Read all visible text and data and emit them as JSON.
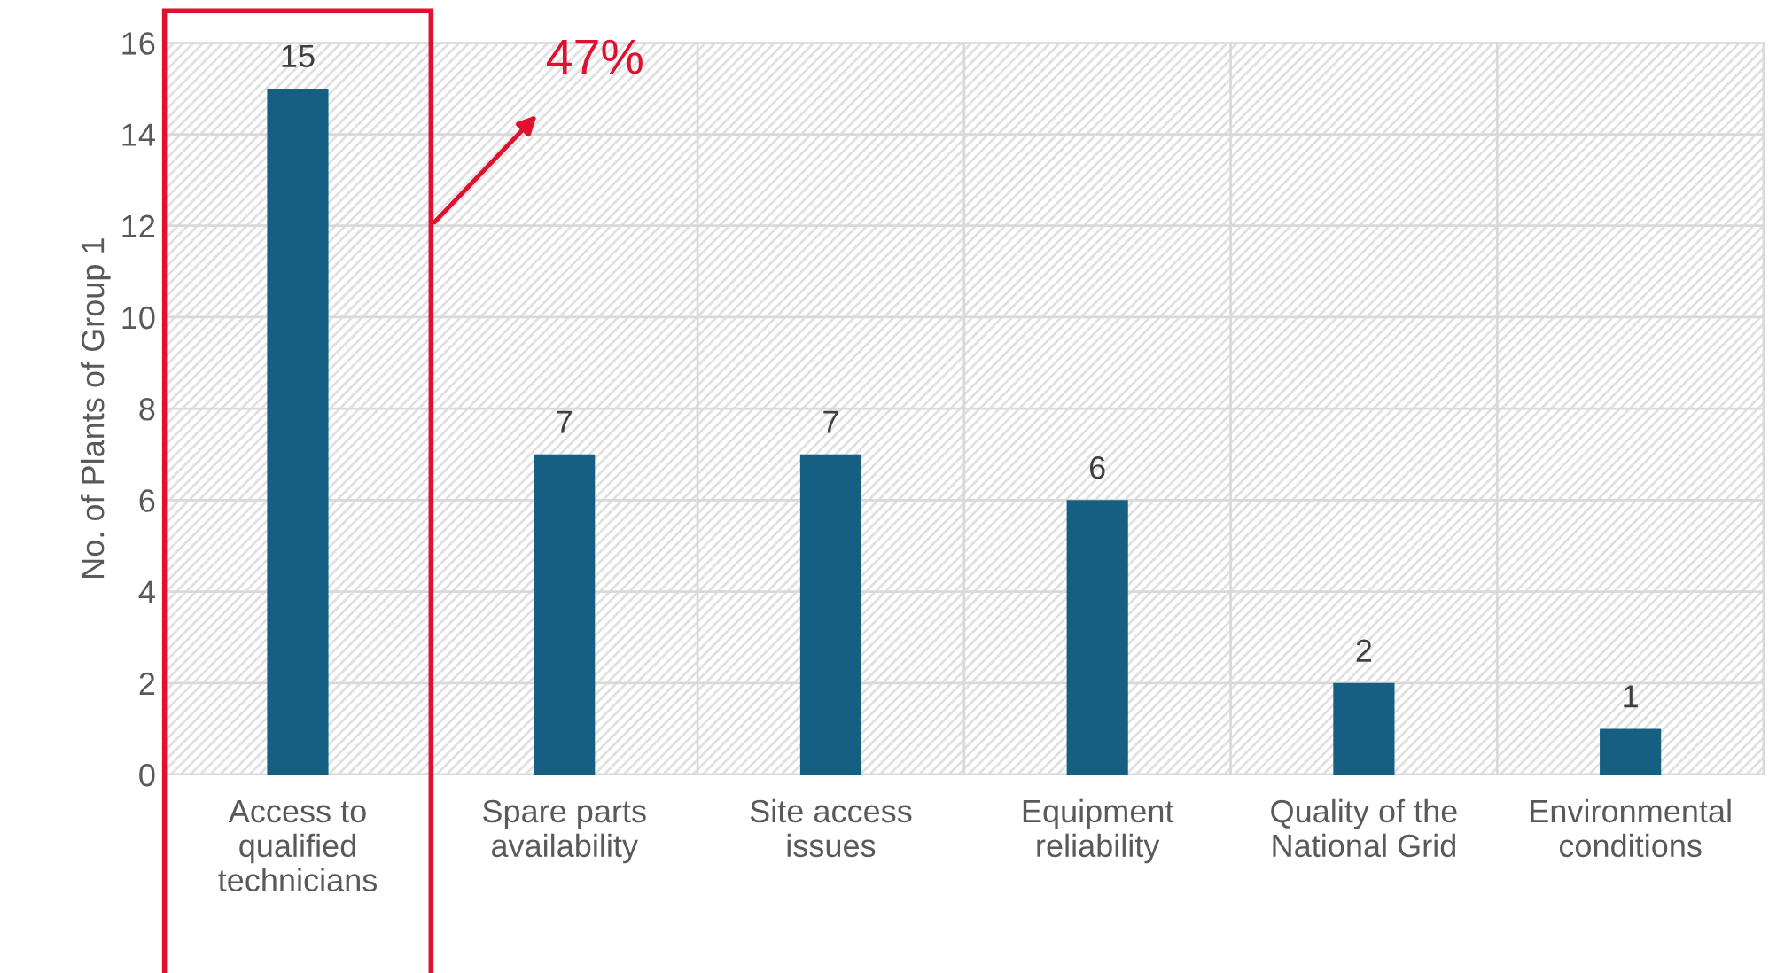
{
  "chart_data": {
    "type": "bar",
    "categories": [
      "Access to\nqualified\ntechnicians",
      "Spare parts\navailability",
      "Site access\nissues",
      "Equipment\nreliability",
      "Quality of the\nNational Grid",
      "Environmental\nconditions"
    ],
    "values": [
      15,
      7,
      7,
      6,
      2,
      1
    ],
    "color": "#156082",
    "ylabel": "No. of Plants of Group 1",
    "ylim": [
      0,
      16
    ],
    "yticks": [
      0,
      2,
      4,
      6,
      8,
      10,
      12,
      14,
      16
    ],
    "grid": true,
    "data_labels": true,
    "annotations": [
      "47%"
    ]
  }
}
